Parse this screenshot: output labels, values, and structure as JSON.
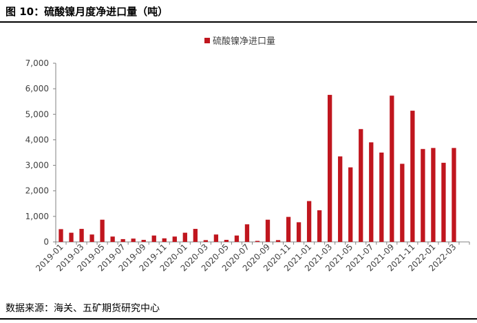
{
  "figure": {
    "title": "图 10：硫酸镍月度净进口量（吨）",
    "source": "数据来源：海关、五矿期货研究中心"
  },
  "colors": {
    "bar": "#C0161E",
    "axis": "#808080",
    "text": "#404040"
  },
  "chart_data": {
    "type": "bar",
    "title": "",
    "xlabel": "",
    "ylabel": "",
    "ylim": [
      0,
      7000
    ],
    "yticks": [
      0,
      1000,
      2000,
      3000,
      4000,
      5000,
      6000,
      7000
    ],
    "ytick_labels": [
      "0",
      "1,000",
      "2,000",
      "3,000",
      "4,000",
      "5,000",
      "6,000",
      "7,000"
    ],
    "grid": false,
    "legend_position": "top-center",
    "categories": [
      "2019-01",
      "2019-02",
      "2019-03",
      "2019-04",
      "2019-05",
      "2019-06",
      "2019-07",
      "2019-08",
      "2019-09",
      "2019-10",
      "2019-11",
      "2019-12",
      "2020-01",
      "2020-02",
      "2020-03",
      "2020-04",
      "2020-05",
      "2020-06",
      "2020-07",
      "2020-08",
      "2020-09",
      "2020-10",
      "2020-11",
      "2020-12",
      "2021-01",
      "2021-02",
      "2021-03",
      "2021-04",
      "2021-05",
      "2021-06",
      "2021-07",
      "2021-08",
      "2021-09",
      "2021-10",
      "2021-11",
      "2021-12",
      "2022-01",
      "2022-02",
      "2022-03",
      "2022-04"
    ],
    "xtick_labels": [
      "2019-01",
      "2019-03",
      "2019-05",
      "2019-07",
      "2019-09",
      "2019-11",
      "2020-01",
      "2020-03",
      "2020-05",
      "2020-07",
      "2020-09",
      "2020-11",
      "2021-01",
      "2021-03",
      "2021-05",
      "2021-07",
      "2021-09",
      "2021-11",
      "2022-01",
      "2022-03"
    ],
    "series": [
      {
        "name": "硫酸镍净进口量",
        "values": [
          500,
          360,
          510,
          290,
          870,
          210,
          110,
          130,
          80,
          250,
          140,
          210,
          360,
          510,
          70,
          290,
          80,
          250,
          690,
          40,
          870,
          70,
          980,
          770,
          1600,
          1240,
          5760,
          3350,
          2920,
          4420,
          3900,
          3500,
          5730,
          3060,
          5140,
          3640,
          3680,
          3100,
          3680,
          0
        ]
      }
    ]
  }
}
